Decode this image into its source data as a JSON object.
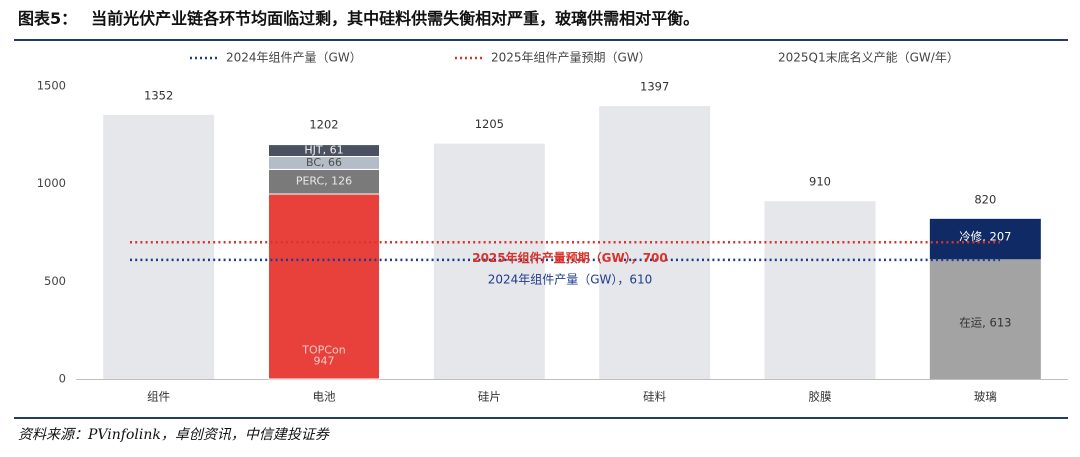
{
  "header": {
    "label": "图表5：",
    "text": "当前光伏产业链各环节均面临过剩，其中硅料供需失衡相对严重，玻璃供需相对平衡。"
  },
  "source": "资料来源：PVinfolink，卓创资讯，中信建投证券",
  "colors": {
    "capacity_bar": "#e6e7eb",
    "topcon": "#e8413c",
    "perc": "#7a7a7a",
    "bc": "#b4bcc8",
    "hjt": "#4b5160",
    "glass_cold": "#0f2a64",
    "glass_running": "#a3a3a3",
    "line_2024": "#1f3c8c",
    "line_2025": "#d9342b",
    "axis_text": "#444444",
    "rule": "#1f3c6e"
  },
  "chart_data": {
    "type": "bar",
    "categories": [
      "组件",
      "电池",
      "硅片",
      "硅料",
      "胶膜",
      "玻璃"
    ],
    "ylim": [
      0,
      1500
    ],
    "yticks": [
      0,
      500,
      1000,
      1500
    ],
    "legend": [
      {
        "name": "2024年组件产量（GW）",
        "style": "dotted",
        "color": "#1f3c8c"
      },
      {
        "name": "2025年组件产量预期（GW）",
        "style": "dotted",
        "color": "#d9342b"
      },
      {
        "name": "2025Q1末底名义产能（GW/年）",
        "style": "bar",
        "color": "#e6e7eb"
      }
    ],
    "capacity": [
      {
        "category": "组件",
        "value": 1352,
        "label": "1352"
      },
      {
        "category": "电池",
        "value": 1202,
        "label": "1202"
      },
      {
        "category": "硅片",
        "value": 1205,
        "label": "1205"
      },
      {
        "category": "硅料",
        "value": 1397,
        "label": "1397"
      },
      {
        "category": "胶膜",
        "value": 910,
        "label": "910"
      },
      {
        "category": "玻璃",
        "value": 820,
        "label": "820"
      }
    ],
    "battery_stack": [
      {
        "name": "TOPCon",
        "value": 947,
        "label_line1": "TOPCon",
        "label_line2": "947",
        "color": "#e8413c"
      },
      {
        "name": "PERC",
        "value": 126,
        "label": "PERC, 126",
        "color": "#7a7a7a"
      },
      {
        "name": "BC",
        "value": 66,
        "label": "BC, 66",
        "color": "#b4bcc8"
      },
      {
        "name": "HJT",
        "value": 61,
        "label": "HJT, 61",
        "color": "#4b5160"
      }
    ],
    "glass_stack": [
      {
        "name": "在运",
        "value": 613,
        "label": "在运, 613",
        "color": "#a3a3a3"
      },
      {
        "name": "冷修",
        "value": 207,
        "label": "冷修, 207",
        "color": "#0f2a64"
      }
    ],
    "reference_lines": [
      {
        "name": "2024年组件产量（GW）",
        "value": 610,
        "label": "2024年组件产量（GW），610",
        "color": "#1f3c8c"
      },
      {
        "name": "2025年组件产量预期（GW）",
        "value": 700,
        "label": "2025年组件产量预期（GW），700",
        "color": "#d9342b"
      }
    ]
  }
}
